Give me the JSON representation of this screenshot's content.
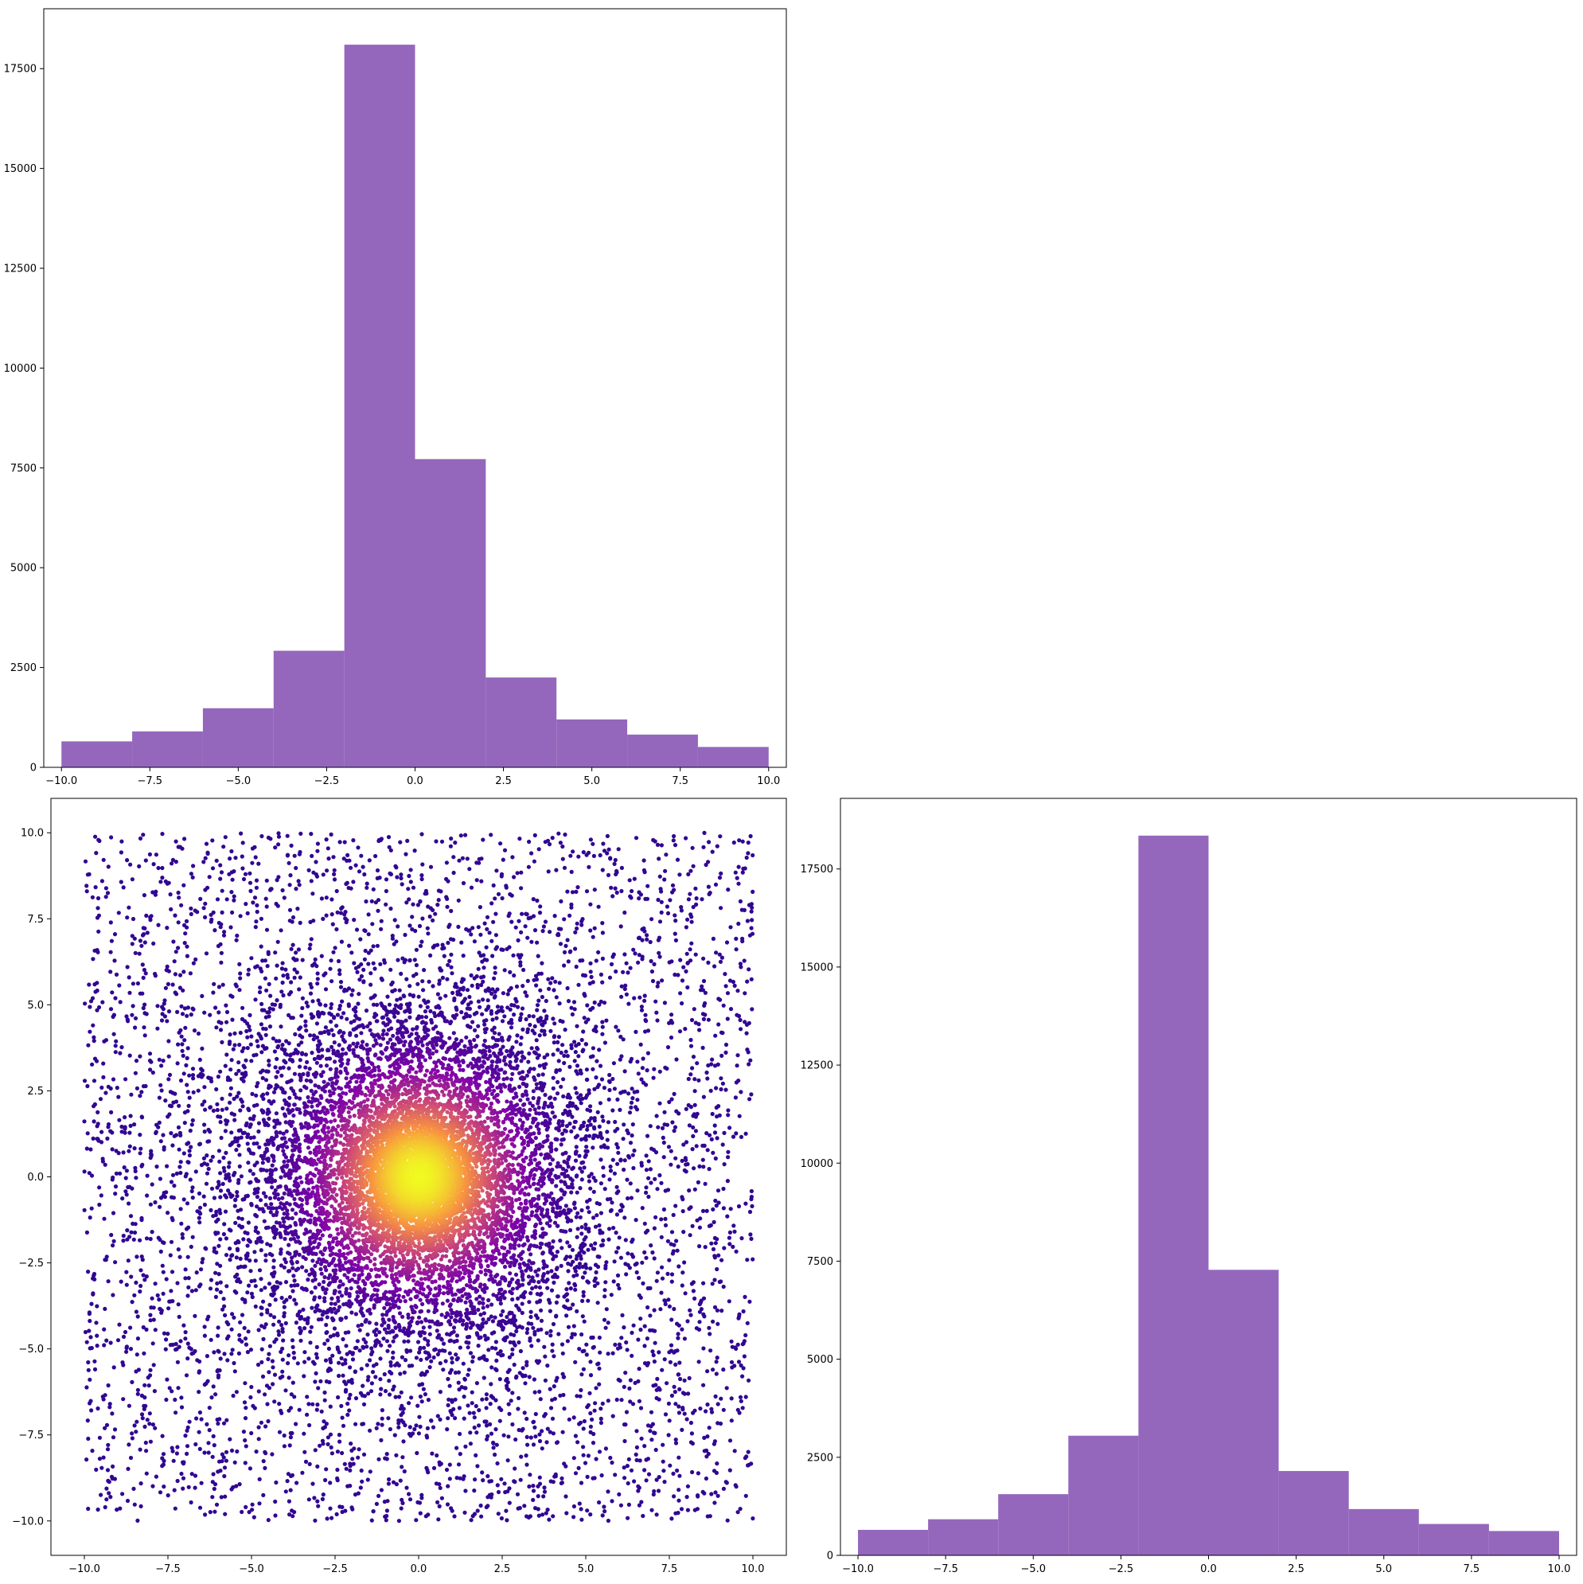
{
  "colors": {
    "hist_fill": "#9467bd",
    "axes_edge": "#000000",
    "scatter_colormap": "plasma"
  },
  "chart_data": [
    {
      "type": "bar",
      "subplot": "top-left",
      "bin_edges": [
        -10,
        -8,
        -6,
        -4,
        -2,
        0,
        2,
        4,
        6,
        8,
        10
      ],
      "values": [
        650,
        900,
        1480,
        2920,
        18100,
        7720,
        2250,
        1200,
        820,
        510
      ],
      "xlim": [
        -10.5,
        10.5
      ],
      "ylim": [
        0,
        19000
      ],
      "xticks": [
        -10.0,
        -7.5,
        -5.0,
        -2.5,
        0.0,
        2.5,
        5.0,
        7.5,
        10.0
      ],
      "xtick_labels": [
        "−10.0",
        "−7.5",
        "−5.0",
        "−2.5",
        "0.0",
        "2.5",
        "5.0",
        "7.5",
        "10.0"
      ],
      "yticks": [
        0,
        2500,
        5000,
        7500,
        10000,
        12500,
        15000,
        17500
      ],
      "ytick_labels": [
        "0",
        "2500",
        "5000",
        "7500",
        "10000",
        "12500",
        "15000",
        "17500"
      ],
      "grid": false,
      "color": "#9467bd"
    },
    {
      "type": "scatter",
      "subplot": "bottom-left",
      "description_of_data": "points uniform-ish over [-10,10] square with a dense Gaussian core at origin; colored by density (plasma colormap)",
      "point_count_approx": 30000,
      "xlim": [
        -11,
        11
      ],
      "ylim": [
        -11,
        11
      ],
      "xticks": [
        -10.0,
        -7.5,
        -5.0,
        -2.5,
        0.0,
        2.5,
        5.0,
        7.5,
        10.0
      ],
      "xtick_labels": [
        "−10.0",
        "−7.5",
        "−5.0",
        "−2.5",
        "0.0",
        "2.5",
        "5.0",
        "7.5",
        "10.0"
      ],
      "yticks": [
        -10.0,
        -7.5,
        -5.0,
        -2.5,
        0.0,
        2.5,
        5.0,
        7.5,
        10.0
      ],
      "ytick_labels": [
        "−10.0",
        "−7.5",
        "−5.0",
        "−2.5",
        "0.0",
        "2.5",
        "5.0",
        "7.5",
        "10.0"
      ],
      "grid": false
    },
    {
      "type": "bar",
      "subplot": "bottom-right",
      "bin_edges": [
        -10,
        -8,
        -6,
        -4,
        -2,
        0,
        2,
        4,
        6,
        8,
        10
      ],
      "values": [
        650,
        920,
        1560,
        3050,
        18350,
        7280,
        2150,
        1180,
        800,
        620
      ],
      "xlim": [
        -10.5,
        10.5
      ],
      "ylim": [
        0,
        19300
      ],
      "xticks": [
        -10.0,
        -7.5,
        -5.0,
        -2.5,
        0.0,
        2.5,
        5.0,
        7.5,
        10.0
      ],
      "xtick_labels": [
        "−10.0",
        "−7.5",
        "−5.0",
        "−2.5",
        "0.0",
        "2.5",
        "5.0",
        "7.5",
        "10.0"
      ],
      "yticks": [
        0,
        2500,
        5000,
        7500,
        10000,
        12500,
        15000,
        17500
      ],
      "ytick_labels": [
        "0",
        "2500",
        "5000",
        "7500",
        "10000",
        "12500",
        "15000",
        "17500"
      ],
      "grid": false,
      "color": "#9467bd"
    }
  ]
}
